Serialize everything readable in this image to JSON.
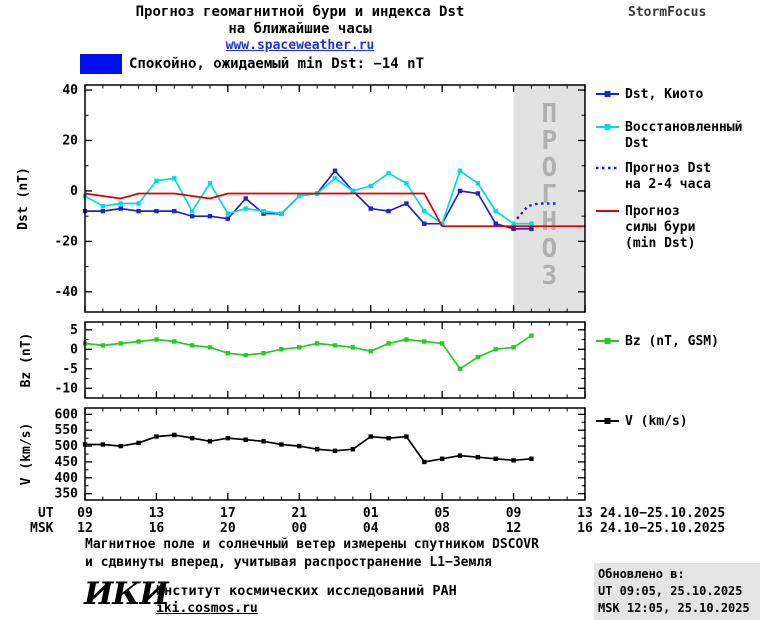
{
  "header": {
    "title_line1": "Прогноз геомагнитной бури и индекса Dst",
    "title_line2": "на ближайшие часы",
    "link": "www.spaceweather.ru",
    "brand": "StormFocus"
  },
  "status": {
    "text": "Спокойно, ожидаемый min Dst: −14 nT",
    "color": "#0011ee",
    "min_dst_nT": -14
  },
  "chart_data": {
    "type": "line",
    "title": "Прогноз геомагнитной бури и индекса Dst на ближайшие часы",
    "x_description": "hours, 24.10 09:00 UT to 25.10 13:00 UT",
    "x_axis": {
      "t_range": [
        0,
        28
      ],
      "ticks_t": [
        0,
        4,
        8,
        12,
        16,
        20,
        24,
        28
      ],
      "ut_prefix": "UT",
      "msk_prefix": "MSK",
      "ut_labels": [
        "09",
        "13",
        "17",
        "21",
        "01",
        "05",
        "09",
        "13"
      ],
      "msk_labels": [
        "12",
        "16",
        "20",
        "00",
        "04",
        "08",
        "12",
        "16"
      ],
      "date_range": "24.10−25.10.2025"
    },
    "forecast_region": {
      "t_start": 24,
      "t_end": 28,
      "label": "ПРОГНОЗ"
    },
    "plots": [
      {
        "name": "dst",
        "ylabel": "Dst (nT)",
        "ylim": [
          -48,
          42
        ],
        "yticks": [
          40,
          20,
          0,
          -20,
          -40
        ],
        "yminor": [
          30,
          10,
          -10,
          -30
        ],
        "series": [
          {
            "name": "Dst, Киото",
            "color": "#2222cc",
            "marker": true,
            "style": "solid",
            "x": [
              0,
              1,
              2,
              3,
              4,
              5,
              6,
              7,
              8,
              9,
              10,
              11,
              12,
              13,
              14,
              15,
              16,
              17,
              18,
              19,
              20,
              21,
              22,
              23,
              24,
              25
            ],
            "values": [
              -8,
              -8,
              -7,
              -8,
              -8,
              -8,
              -10,
              -10,
              -11,
              -3,
              -9,
              -9,
              -2,
              -1,
              8,
              0,
              -7,
              -8,
              -5,
              -13,
              -13,
              0,
              -1,
              -13,
              -15,
              -15
            ]
          },
          {
            "name": "Восстановленный Dst",
            "color": "#00dddd",
            "marker": true,
            "style": "solid",
            "x": [
              0,
              1,
              2,
              3,
              4,
              5,
              6,
              7,
              8,
              9,
              10,
              11,
              12,
              13,
              14,
              15,
              16,
              17,
              18,
              19,
              20,
              21,
              22,
              23,
              24,
              25
            ],
            "values": [
              -2,
              -6,
              -5,
              -5,
              4,
              5,
              -8,
              3,
              -9,
              -7,
              -8,
              -9,
              -2,
              -1,
              5,
              0,
              2,
              7,
              3,
              -8,
              -13,
              8,
              3,
              -8,
              -13,
              -13
            ]
          },
          {
            "name": "Прогноз Dst на 2-4 часа",
            "color": "#2222cc",
            "marker": false,
            "style": "dotted",
            "x": [
              24.2,
              24.8,
              25.4,
              26,
              26.5
            ],
            "values": [
              -11,
              -6,
              -5,
              -5,
              -5
            ]
          },
          {
            "name": "Прогноз силы бури (min Dst)",
            "color": "#dd0000",
            "marker": false,
            "style": "solid",
            "x": [
              0,
              1,
              2,
              3,
              4,
              5,
              6,
              7,
              8,
              9,
              10,
              11,
              12,
              13,
              14,
              15,
              16,
              17,
              18,
              19,
              20,
              21,
              22,
              23,
              24,
              25,
              26,
              27,
              28
            ],
            "values": [
              -1,
              -2,
              -3,
              -1,
              -1,
              -1,
              -2,
              -3,
              -1,
              -1,
              -1,
              -1,
              -1,
              -1,
              -1,
              -1,
              -1,
              -1,
              -1,
              -1,
              -14,
              -14,
              -14,
              -14,
              -14,
              -14,
              -14,
              -14,
              -14
            ]
          }
        ]
      },
      {
        "name": "bz",
        "ylabel": "Bz (nT)",
        "ylim": [
          -12.5,
          7
        ],
        "yticks": [
          5,
          0,
          -5,
          -10
        ],
        "yminor": [
          2.5,
          -2.5,
          -7.5
        ],
        "series": [
          {
            "name": "Bz (nT, GSM)",
            "color": "#22cc22",
            "marker": true,
            "style": "solid",
            "x": [
              0,
              1,
              2,
              3,
              4,
              5,
              6,
              7,
              8,
              9,
              10,
              11,
              12,
              13,
              14,
              15,
              16,
              17,
              18,
              19,
              20,
              21,
              22,
              23,
              24,
              25
            ],
            "values": [
              1.5,
              1,
              1.5,
              2,
              2.5,
              2,
              1,
              0.5,
              -1,
              -1.5,
              -1,
              0,
              0.5,
              1.5,
              1,
              0.5,
              -0.5,
              1.5,
              2.5,
              2,
              1.5,
              -5,
              -2,
              0,
              0.5,
              3.5
            ]
          }
        ]
      },
      {
        "name": "v",
        "ylabel": "V (km/s)",
        "ylim": [
          330,
          620
        ],
        "yticks": [
          600,
          550,
          500,
          450,
          400,
          350
        ],
        "yminor": [
          575,
          525,
          475,
          425,
          375
        ],
        "series": [
          {
            "name": "V (km/s)",
            "color": "#000000",
            "marker": true,
            "style": "solid",
            "x": [
              0,
              1,
              2,
              3,
              4,
              5,
              6,
              7,
              8,
              9,
              10,
              11,
              12,
              13,
              14,
              15,
              16,
              17,
              18,
              19,
              20,
              21,
              22,
              23,
              24,
              25
            ],
            "values": [
              505,
              505,
              500,
              510,
              530,
              535,
              525,
              515,
              525,
              520,
              515,
              505,
              500,
              490,
              485,
              490,
              530,
              525,
              530,
              450,
              460,
              470,
              465,
              460,
              455,
              460
            ]
          }
        ]
      }
    ],
    "legend": [
      {
        "lines": [
          "Dst, Киото"
        ],
        "color": "#2222cc",
        "marker": true,
        "style": "solid",
        "y": 94
      },
      {
        "lines": [
          "Восстановленный",
          "Dst"
        ],
        "color": "#00dddd",
        "marker": true,
        "style": "solid",
        "y": 127
      },
      {
        "lines": [
          "Прогноз Dst",
          "на 2-4 часа"
        ],
        "color": "#2222cc",
        "marker": false,
        "style": "dotted",
        "y": 168
      },
      {
        "lines": [
          "Прогноз",
          "силы бури",
          "(min Dst)"
        ],
        "color": "#dd0000",
        "marker": false,
        "style": "solid",
        "y": 211
      },
      {
        "lines": [
          "Bz (nT, GSM)"
        ],
        "color": "#22cc22",
        "marker": true,
        "style": "solid",
        "y": 341
      },
      {
        "lines": [
          "V (km/s)"
        ],
        "color": "#000000",
        "marker": true,
        "style": "solid",
        "y": 421
      }
    ]
  },
  "footer": {
    "note_line1": "Магнитное поле и солнечный ветер измерены спутником DSCOVR",
    "note_line2": "и сдвинуты вперед, учитывая распространение L1−Земля",
    "logo": "ИКИ",
    "institute": "Институт космических исследований РАН",
    "site": "iki.cosmos.ru"
  },
  "updated": {
    "label": "Обновлено в:",
    "ut": "UT  09:05, 25.10.2025",
    "msk": "MSK 12:05, 25.10.2025"
  }
}
